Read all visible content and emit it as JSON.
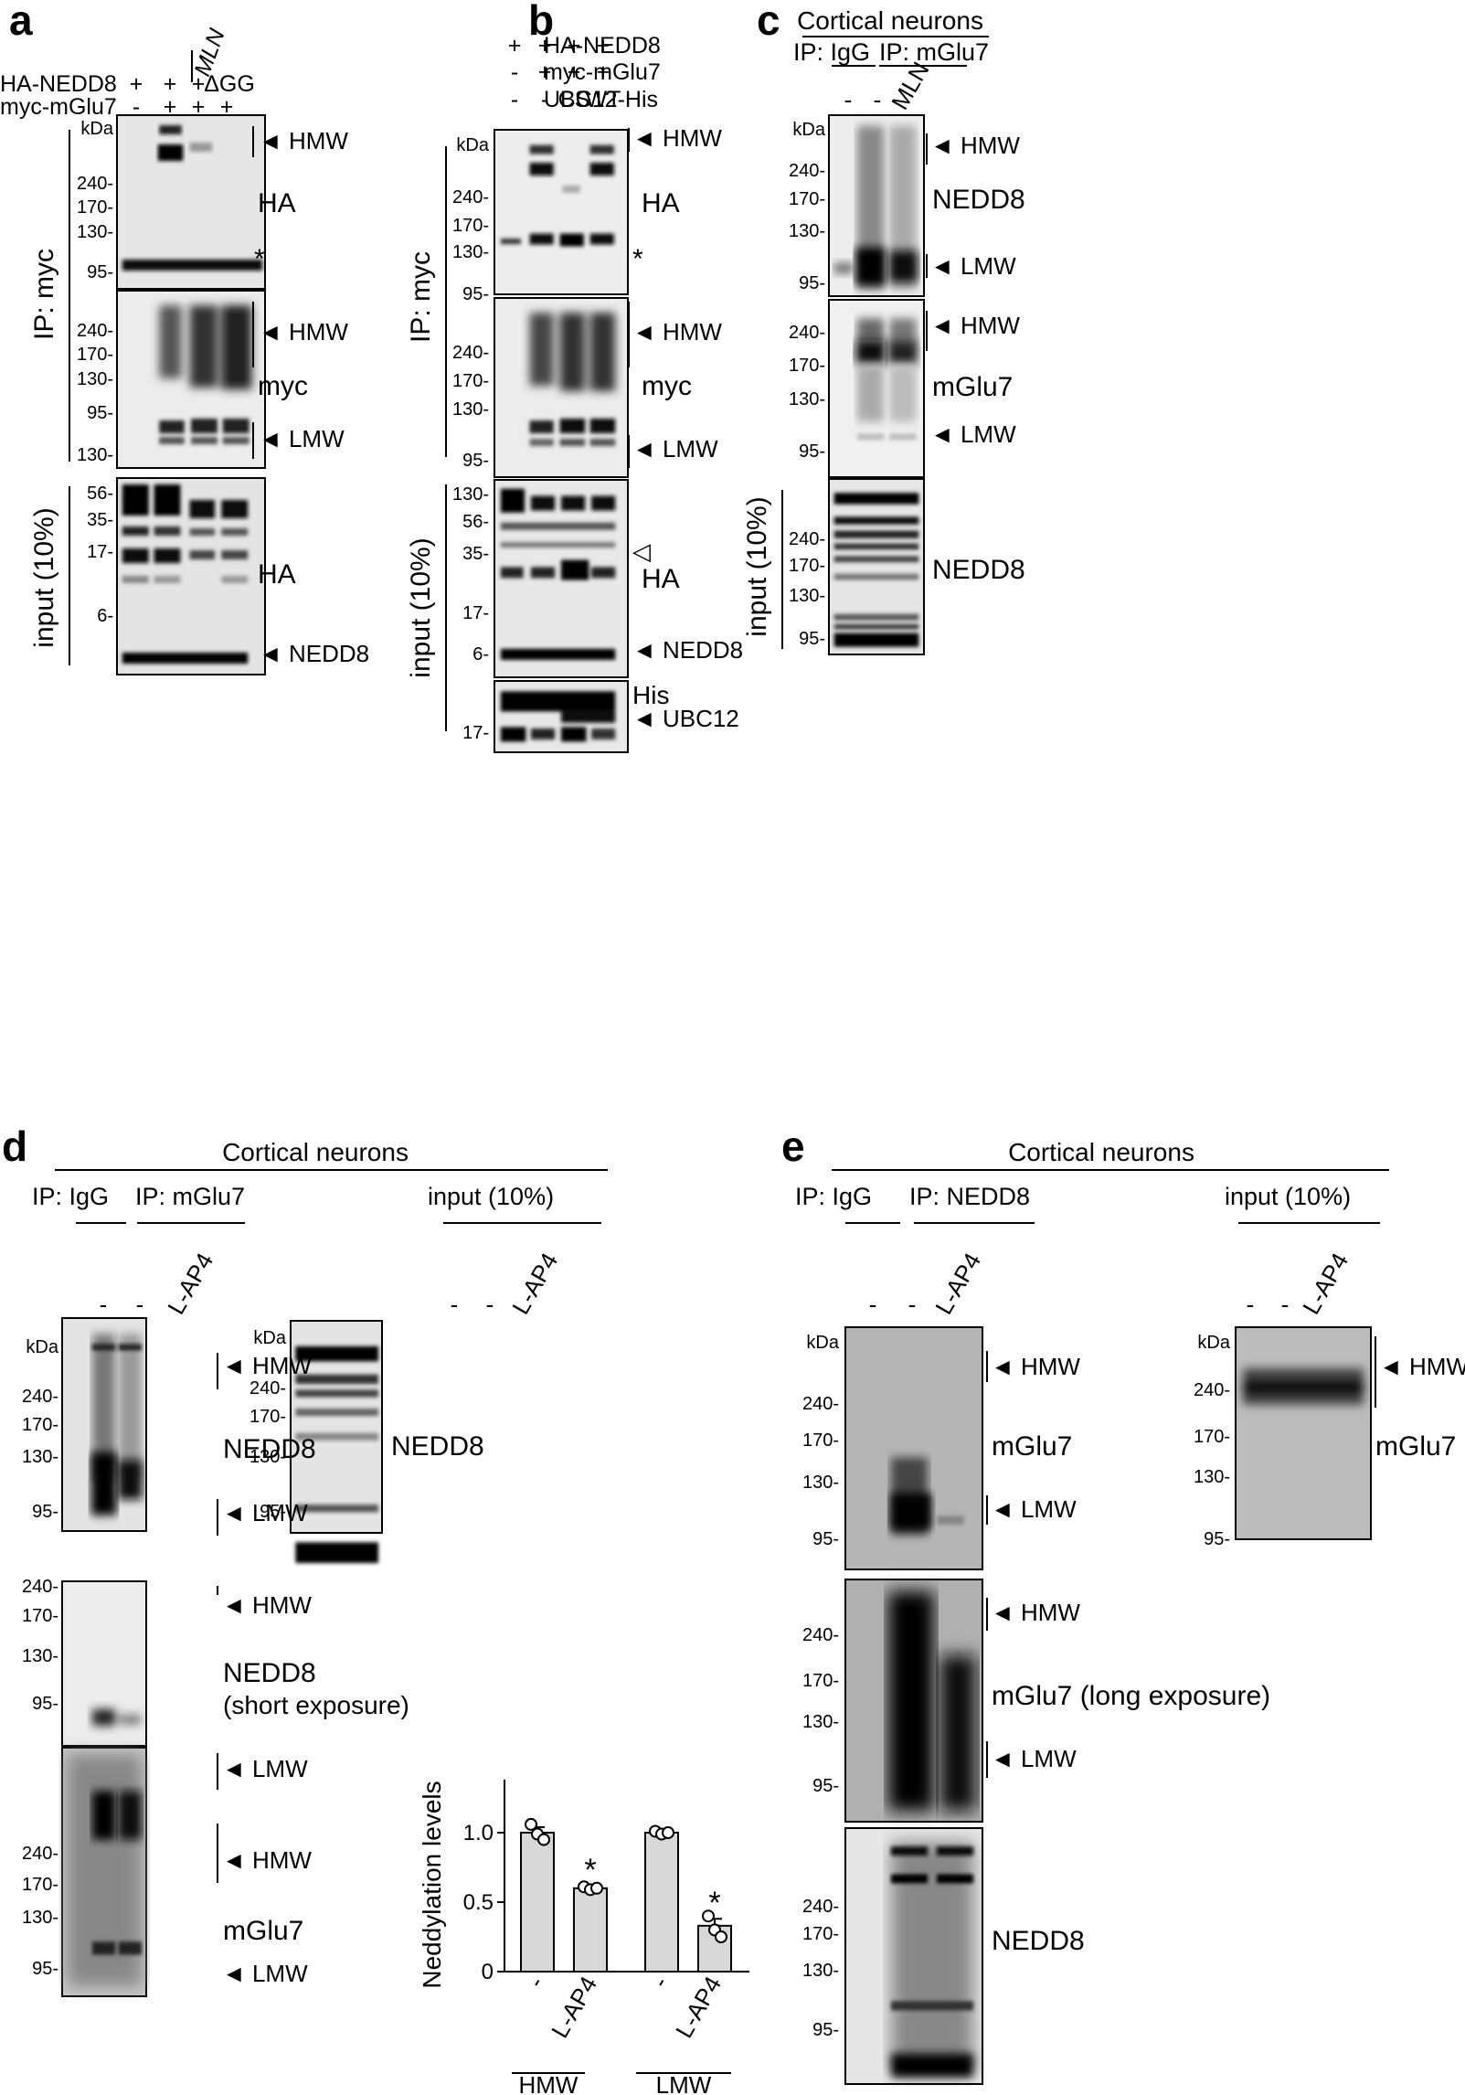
{
  "panels": {
    "a": {
      "letter": "a",
      "header_rows": [
        {
          "label": "HA-NEDD8",
          "marks": [
            "+",
            "+",
            "+",
            "ΔGG"
          ]
        },
        {
          "label": "myc-mGlu7",
          "marks": [
            "-",
            "+",
            "+",
            "+"
          ]
        }
      ],
      "mln": "MLN",
      "ip_label": "IP: myc",
      "input_label": "input (10%)",
      "blots": [
        {
          "target": "HA",
          "mw": [
            "kDa",
            "240-",
            "170-",
            "130-",
            "95-"
          ],
          "tags": [
            "◄ HMW",
            "*"
          ]
        },
        {
          "target": "myc",
          "mw": [
            "240-",
            "170-",
            "130-",
            "95-"
          ],
          "tags": [
            "◄ HMW",
            "◄ LMW"
          ]
        },
        {
          "target": "HA",
          "mw": [
            "130-",
            "56-",
            "35-",
            "17-",
            "6-"
          ],
          "tags": [
            "◄ NEDD8"
          ]
        }
      ]
    },
    "b": {
      "letter": "b",
      "header_rows": [
        {
          "label": "HA-NEDD8",
          "marks": [
            "+",
            "+",
            "+",
            "+"
          ]
        },
        {
          "label": "myc-mGlu7",
          "marks": [
            "-",
            "+",
            "+",
            "+"
          ]
        },
        {
          "label": "UBC12-His",
          "marks": [
            "-",
            "-",
            "CS",
            "WT"
          ]
        }
      ],
      "ip_label": "IP: myc",
      "input_label": "input (10%)",
      "blots": [
        {
          "target": "HA",
          "mw": [
            "kDa",
            "240-",
            "170-",
            "130-",
            "95-"
          ],
          "tags": [
            "◄ HMW",
            "*"
          ]
        },
        {
          "target": "myc",
          "mw": [
            "240-",
            "170-",
            "130-",
            "95-"
          ],
          "tags": [
            "◄ HMW",
            "◄ LMW"
          ]
        },
        {
          "target": "HA",
          "mw": [
            "130-",
            "56-",
            "35-",
            "17-",
            "6-"
          ],
          "tags": [
            "◁",
            "◄ NEDD8"
          ]
        },
        {
          "target": "His",
          "mw": [
            "17-"
          ],
          "tags": [
            "◄ UBC12"
          ]
        }
      ]
    },
    "c": {
      "letter": "c",
      "title": "Cortical neurons",
      "ip_igg": "IP: IgG",
      "ip_target": "IP: mGlu7",
      "lanes": [
        "-",
        "-",
        "MLN"
      ],
      "input_label": "input (10%)",
      "blots": [
        {
          "target": "NEDD8",
          "mw": [
            "kDa",
            "240-",
            "170-",
            "130-",
            "95-"
          ],
          "tags": [
            "◄ HMW",
            "◄ LMW"
          ]
        },
        {
          "target": "mGlu7",
          "mw": [
            "240-",
            "170-",
            "130-",
            "95-"
          ],
          "tags": [
            "◄ HMW",
            "◄ LMW"
          ]
        },
        {
          "target": "NEDD8",
          "mw": [
            "240-",
            "170-",
            "130-",
            "95-"
          ],
          "tags": []
        }
      ]
    },
    "d": {
      "letter": "d",
      "title": "Cortical neurons",
      "ip_igg": "IP: IgG",
      "ip_target": "IP: mGlu7",
      "input_header": "input (10%)",
      "lanes": [
        "-",
        "-",
        "L-AP4"
      ],
      "blots": [
        {
          "target": "NEDD8",
          "mw": [
            "kDa",
            "240-",
            "170-",
            "130-",
            "95-"
          ],
          "tags": [
            "◄ HMW",
            "◄ LMW"
          ]
        },
        {
          "target": "NEDD8",
          "sub": "(short exposure)",
          "mw": [
            "240-",
            "170-",
            "130-",
            "95-"
          ],
          "tags": [
            "◄ HMW",
            "◄ LMW"
          ]
        },
        {
          "target": "mGlu7",
          "mw": [
            "240-",
            "170-",
            "130-",
            "95-"
          ],
          "tags": [
            "◄ HMW",
            "◄ LMW"
          ]
        }
      ],
      "input_blot": {
        "target": "NEDD8",
        "mw": [
          "kDa",
          "240-",
          "170-",
          "130-",
          "95-"
        ]
      }
    },
    "e": {
      "letter": "e",
      "title": "Cortical neurons",
      "ip_igg": "IP: IgG",
      "ip_target": "IP: NEDD8",
      "input_header": "input (10%)",
      "lanes": [
        "-",
        "-",
        "L-AP4"
      ],
      "blots": [
        {
          "target": "mGlu7",
          "mw": [
            "kDa",
            "240-",
            "170-",
            "130-",
            "95-"
          ],
          "tags": [
            "◄ HMW",
            "◄ LMW"
          ]
        },
        {
          "target": "mGlu7 (long exposure)",
          "mw": [
            "240-",
            "170-",
            "130-",
            "95-"
          ],
          "tags": [
            "◄ HMW",
            "◄ LMW"
          ]
        },
        {
          "target": "NEDD8",
          "mw": [
            "240-",
            "170-",
            "130-",
            "95-"
          ],
          "tags": []
        }
      ],
      "input_blot": {
        "target": "mGlu7",
        "mw": [
          "kDa",
          "240-",
          "170-",
          "130-",
          "95-"
        ],
        "tags": [
          "◄ HMW"
        ]
      }
    }
  },
  "chart_data": {
    "type": "bar",
    "ylabel": "Neddylation levels",
    "ylim": [
      0,
      1.25
    ],
    "yticks": [
      "0",
      "0.5",
      "1.0"
    ],
    "groups": [
      "HMW",
      "LMW"
    ],
    "categories": [
      "-",
      "L-AP4",
      "-",
      "L-AP4"
    ],
    "values": [
      1.0,
      0.6,
      1.0,
      0.33
    ],
    "errors": [
      0.04,
      0.02,
      0.01,
      0.05
    ],
    "points": [
      [
        1.06,
        0.99,
        0.95
      ],
      [
        0.61,
        0.59,
        0.6
      ],
      [
        1.01,
        0.99,
        1.0
      ],
      [
        0.4,
        0.3,
        0.25
      ]
    ],
    "significance": [
      "",
      "*",
      "",
      "*"
    ]
  }
}
